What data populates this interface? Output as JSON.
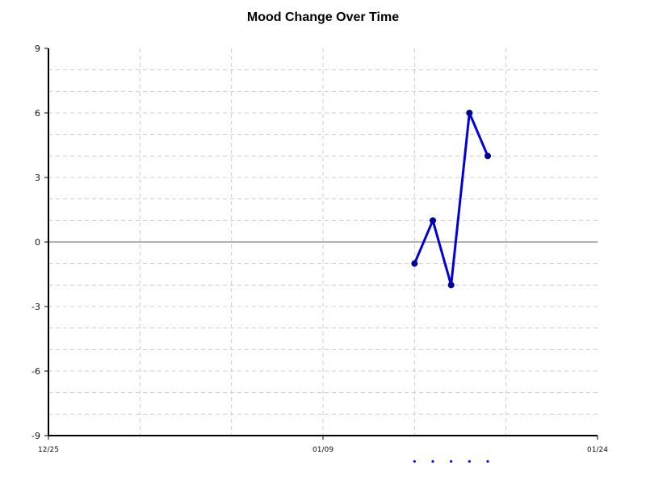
{
  "chart_data": {
    "type": "line",
    "title": "Mood Change Over Time",
    "xlabel": "",
    "ylabel": "",
    "x_tick_labels": [
      "12/25",
      "01/09",
      "01/24"
    ],
    "y_ticks": [
      9,
      6,
      3,
      0,
      -3,
      -6,
      -9
    ],
    "ylim": [
      -9,
      9
    ],
    "xlim": [
      "12/25",
      "01/24"
    ],
    "grid": true,
    "series": [
      {
        "color": "#0000dd",
        "x": [
          "01/14",
          "01/15",
          "01/16",
          "01/17",
          "01/18"
        ],
        "values": [
          -1,
          1,
          -2,
          6,
          4
        ]
      }
    ],
    "colors": {
      "line": "#0000dd",
      "marker": "#000099",
      "grid": "#cccccc",
      "zero_line": "#999999",
      "axis": "#000000"
    }
  }
}
